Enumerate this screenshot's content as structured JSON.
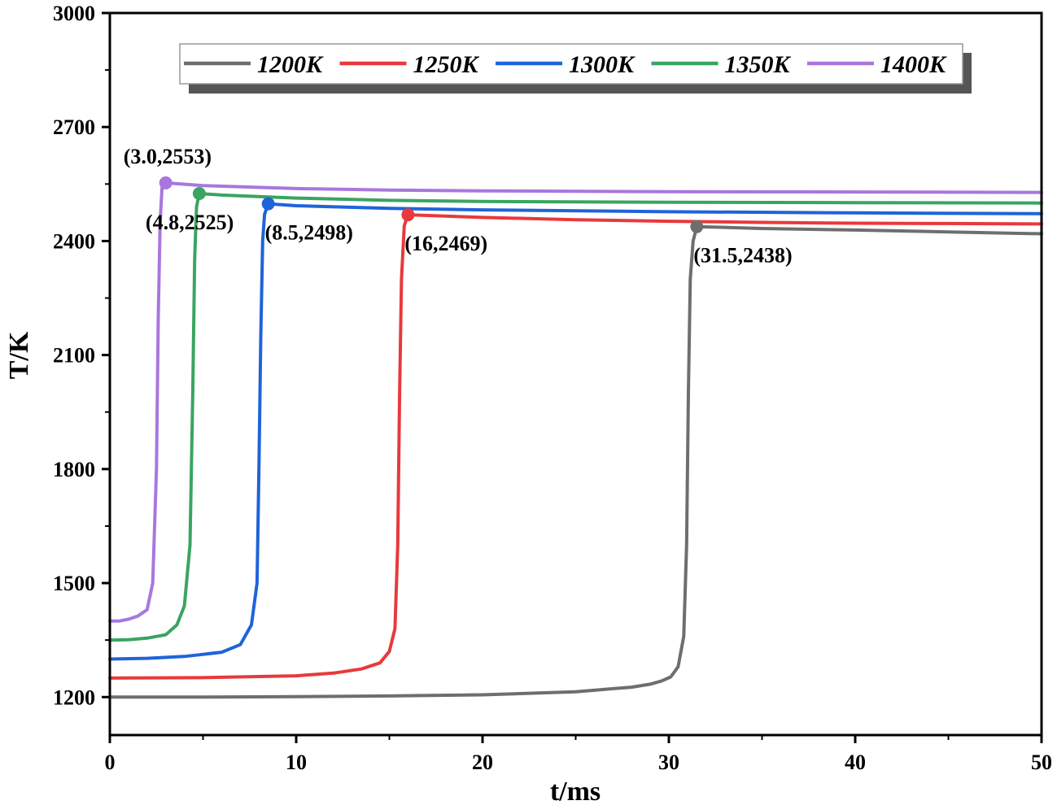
{
  "chart_data": {
    "type": "line",
    "title": "",
    "xlabel": "t/ms",
    "ylabel": "T/K",
    "xlim": [
      0,
      50
    ],
    "ylim": [
      1100,
      3000
    ],
    "xticks": [
      0,
      10,
      20,
      30,
      40,
      50
    ],
    "yticks": [
      1200,
      1500,
      1800,
      2100,
      2400,
      2700,
      3000
    ],
    "grid": false,
    "legend_position": "top",
    "series": [
      {
        "name": "1200K",
        "color": "#6e6e6e",
        "x": [
          0,
          5,
          10,
          15,
          20,
          25,
          28,
          29,
          29.6,
          30.1,
          30.5,
          30.8,
          30.95,
          31.05,
          31.15,
          31.3,
          31.5,
          35,
          40,
          45,
          50
        ],
        "y": [
          1200,
          1200,
          1201,
          1203,
          1206,
          1214,
          1226,
          1234,
          1242,
          1253,
          1280,
          1360,
          1600,
          2000,
          2300,
          2400,
          2438,
          2433,
          2429,
          2424,
          2419
        ]
      },
      {
        "name": "1250K",
        "color": "#e8393c",
        "x": [
          0,
          5,
          10,
          12,
          13.5,
          14.5,
          15,
          15.3,
          15.45,
          15.55,
          15.65,
          15.8,
          16,
          20,
          25,
          30,
          35,
          40,
          45,
          50
        ],
        "y": [
          1250,
          1251,
          1256,
          1263,
          1274,
          1290,
          1320,
          1380,
          1600,
          2000,
          2300,
          2440,
          2469,
          2462,
          2456,
          2452,
          2449,
          2447,
          2446,
          2445
        ]
      },
      {
        "name": "1300K",
        "color": "#1f64d8",
        "x": [
          0,
          2,
          4,
          6,
          7,
          7.6,
          7.9,
          8.0,
          8.1,
          8.2,
          8.3,
          8.5,
          10,
          15,
          20,
          30,
          40,
          50
        ],
        "y": [
          1300,
          1302,
          1307,
          1318,
          1338,
          1390,
          1500,
          1800,
          2150,
          2400,
          2470,
          2498,
          2493,
          2486,
          2482,
          2477,
          2474,
          2472
        ]
      },
      {
        "name": "1350K",
        "color": "#3aa461",
        "x": [
          0,
          1,
          2,
          3,
          3.6,
          4.0,
          4.3,
          4.45,
          4.55,
          4.65,
          4.8,
          6,
          10,
          15,
          20,
          30,
          40,
          50
        ],
        "y": [
          1350,
          1351,
          1355,
          1364,
          1390,
          1440,
          1600,
          2000,
          2350,
          2490,
          2525,
          2521,
          2513,
          2507,
          2504,
          2502,
          2501,
          2500
        ]
      },
      {
        "name": "1400K",
        "color": "#a877de",
        "x": [
          0,
          0.5,
          1,
          1.5,
          2.0,
          2.3,
          2.5,
          2.6,
          2.7,
          2.8,
          3.0,
          5,
          10,
          15,
          20,
          30,
          40,
          50
        ],
        "y": [
          1400,
          1400,
          1405,
          1413,
          1430,
          1500,
          1800,
          2200,
          2450,
          2540,
          2553,
          2546,
          2538,
          2534,
          2532,
          2530,
          2529,
          2528
        ]
      }
    ],
    "annotations": [
      {
        "text": "(3.0,2553)",
        "x": 3.0,
        "y": 2553,
        "series": "1400K",
        "anchor": "above"
      },
      {
        "text": "(4.8,2525)",
        "x": 4.8,
        "y": 2525,
        "series": "1350K",
        "anchor": "below"
      },
      {
        "text": "(8.5,2498)",
        "x": 8.5,
        "y": 2498,
        "series": "1300K",
        "anchor": "below-right"
      },
      {
        "text": "(16,2469)",
        "x": 16,
        "y": 2469,
        "series": "1250K",
        "anchor": "below-right"
      },
      {
        "text": "(31.5,2438)",
        "x": 31.5,
        "y": 2438,
        "series": "1200K",
        "anchor": "below-right"
      }
    ]
  }
}
